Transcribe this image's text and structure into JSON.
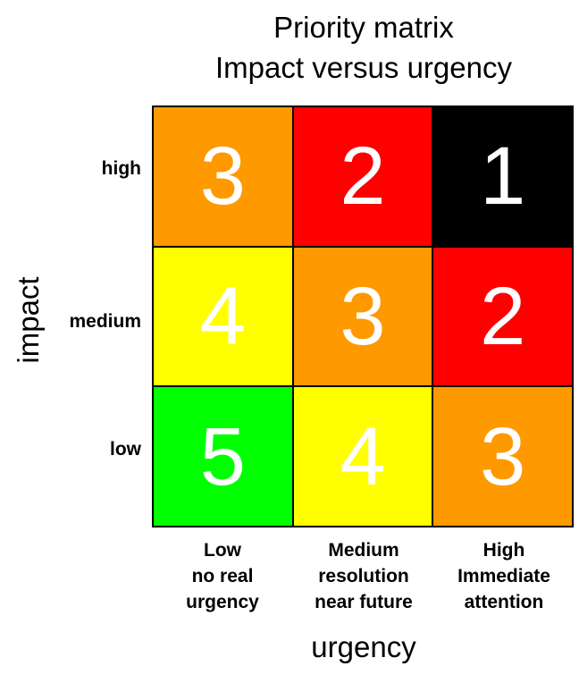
{
  "title": {
    "line1": "Priority matrix",
    "line2": "Impact versus urgency"
  },
  "axes": {
    "y_label": "impact",
    "x_label": "urgency"
  },
  "rows": [
    {
      "label": "high"
    },
    {
      "label": "medium"
    },
    {
      "label": "low"
    }
  ],
  "columns": [
    {
      "lines": [
        "Low",
        "no real",
        "urgency"
      ]
    },
    {
      "lines": [
        "Medium",
        "resolution",
        "near future"
      ]
    },
    {
      "lines": [
        "High",
        "Immediate",
        "attention"
      ]
    }
  ],
  "matrix": [
    [
      {
        "value": "3",
        "color": "#FF9900"
      },
      {
        "value": "2",
        "color": "#FF0000"
      },
      {
        "value": "1",
        "color": "#000000"
      }
    ],
    [
      {
        "value": "4",
        "color": "#FFFF00"
      },
      {
        "value": "3",
        "color": "#FF9900"
      },
      {
        "value": "2",
        "color": "#FF0000"
      }
    ],
    [
      {
        "value": "5",
        "color": "#00FF00"
      },
      {
        "value": "4",
        "color": "#FFFF00"
      },
      {
        "value": "3",
        "color": "#FF9900"
      }
    ]
  ]
}
